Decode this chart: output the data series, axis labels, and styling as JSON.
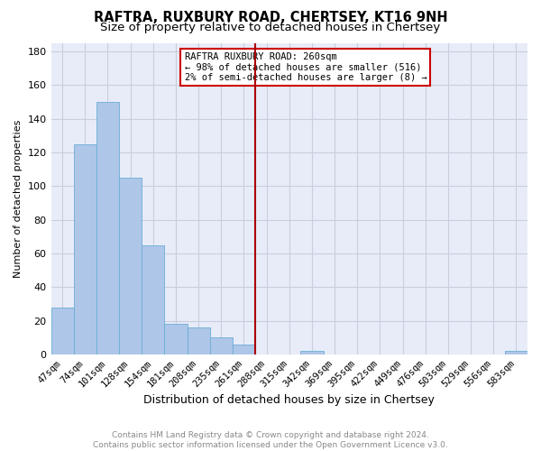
{
  "title": "RAFTRA, RUXBURY ROAD, CHERTSEY, KT16 9NH",
  "subtitle": "Size of property relative to detached houses in Chertsey",
  "xlabel": "Distribution of detached houses by size in Chertsey",
  "ylabel": "Number of detached properties",
  "categories": [
    "47sqm",
    "74sqm",
    "101sqm",
    "128sqm",
    "154sqm",
    "181sqm",
    "208sqm",
    "235sqm",
    "261sqm",
    "288sqm",
    "315sqm",
    "342sqm",
    "369sqm",
    "395sqm",
    "422sqm",
    "449sqm",
    "476sqm",
    "503sqm",
    "529sqm",
    "556sqm",
    "583sqm"
  ],
  "values": [
    28,
    125,
    150,
    105,
    65,
    18,
    16,
    10,
    6,
    0,
    0,
    2,
    0,
    0,
    0,
    0,
    0,
    0,
    0,
    0,
    2
  ],
  "bar_color": "#aec6e8",
  "bar_edge_color": "#6baed6",
  "vline_x_index": 8,
  "vline_color": "#aa0000",
  "annotation_text": "RAFTRA RUXBURY ROAD: 260sqm\n← 98% of detached houses are smaller (516)\n2% of semi-detached houses are larger (8) →",
  "annotation_box_color": "#cc0000",
  "ylim": [
    0,
    185
  ],
  "yticks": [
    0,
    20,
    40,
    60,
    80,
    100,
    120,
    140,
    160,
    180
  ],
  "background_color": "#e8ecf8",
  "grid_color": "#c8cedd",
  "footer_text": "Contains HM Land Registry data © Crown copyright and database right 2024.\nContains public sector information licensed under the Open Government Licence v3.0.",
  "title_fontsize": 10.5,
  "subtitle_fontsize": 9.5
}
